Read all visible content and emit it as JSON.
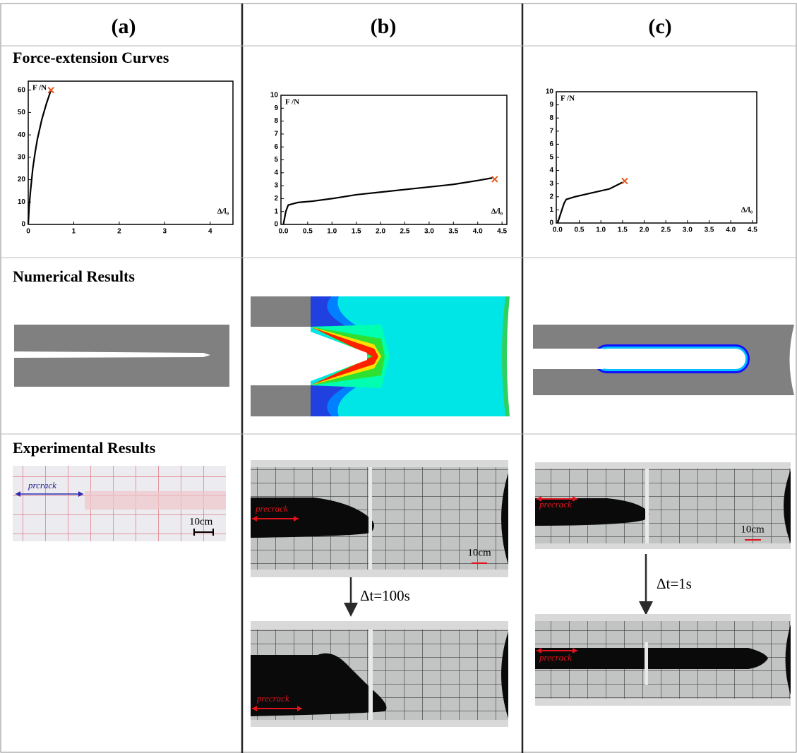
{
  "headers": [
    "(a)",
    "(b)",
    "(c)"
  ],
  "row_labels": [
    "Force-extension Curves",
    "Numerical Results",
    "Experimental Results"
  ],
  "chart_data": [
    {
      "type": "line",
      "y_label": "F /N",
      "x_label": "Δ/l₀",
      "color": "#000000",
      "x": [
        0,
        0.02,
        0.05,
        0.1,
        0.15,
        0.2,
        0.3,
        0.4,
        0.5
      ],
      "values": [
        0,
        8,
        15,
        25,
        32,
        38,
        47,
        54,
        60
      ],
      "failure_point": {
        "x": 0.5,
        "y": 60,
        "color": "#e0581f"
      },
      "xlim": [
        0,
        4.5
      ],
      "xticks": [
        0,
        1,
        2,
        3,
        4
      ],
      "ylim": [
        0,
        64
      ],
      "yticks": [
        0,
        10,
        20,
        30,
        40,
        50,
        60
      ]
    },
    {
      "type": "line",
      "y_label": "F /N",
      "x_label": "Δ/l₀",
      "color": "#000000",
      "x": [
        0,
        0.05,
        0.1,
        0.2,
        0.3,
        0.6,
        1.0,
        1.5,
        2.0,
        2.5,
        3.0,
        3.5,
        4.0,
        4.3
      ],
      "values": [
        0,
        1.0,
        1.5,
        1.6,
        1.7,
        1.8,
        2.0,
        2.3,
        2.5,
        2.7,
        2.9,
        3.1,
        3.4,
        3.6
      ],
      "failure_point": {
        "x": 4.35,
        "y": 3.5,
        "color": "#e0581f"
      },
      "xlim": [
        -0.05,
        4.6
      ],
      "xticks": [
        {
          "value": 0,
          "label": "0.0"
        },
        0.5,
        {
          "value": 1,
          "label": "1.0"
        },
        1.5,
        {
          "value": 2,
          "label": "2.0"
        },
        2.5,
        {
          "value": 3,
          "label": "3.0"
        },
        3.5,
        {
          "value": 4,
          "label": "4.0"
        },
        4.5
      ],
      "ylim": [
        0,
        10
      ],
      "yticks": [
        0,
        1,
        2,
        3,
        4,
        5,
        6,
        7,
        8,
        9,
        10
      ]
    },
    {
      "type": "line",
      "y_label": "F /N",
      "x_label": "Δ/l₀",
      "color": "#000000",
      "x": [
        0,
        0.1,
        0.15,
        0.2,
        0.4,
        0.8,
        1.2,
        1.5
      ],
      "values": [
        0,
        1.0,
        1.5,
        1.8,
        2.0,
        2.3,
        2.6,
        3.1
      ],
      "failure_point": {
        "x": 1.55,
        "y": 3.2,
        "color": "#e0581f"
      },
      "xlim": [
        -0.03,
        4.6
      ],
      "xticks": [
        {
          "value": 0,
          "label": "0.0"
        },
        0.5,
        {
          "value": 1,
          "label": "1.0"
        },
        1.5,
        {
          "value": 2,
          "label": "2.0"
        },
        2.5,
        {
          "value": 3,
          "label": "3.0"
        },
        3.5,
        {
          "value": 4,
          "label": "4.0"
        },
        4.5
      ],
      "ylim": [
        0,
        10
      ],
      "yticks": [
        0,
        1,
        2,
        3,
        4,
        5,
        6,
        7,
        8,
        9,
        10
      ]
    }
  ],
  "experiments": [
    {
      "photos": [
        {
          "label": "prcrack",
          "scale": "10cm"
        }
      ]
    },
    {
      "photos": [
        {
          "label": "precrack",
          "scale": "10cm"
        },
        {
          "label": "precrack"
        }
      ],
      "interval": "Δt=100s"
    },
    {
      "photos": [
        {
          "label": "precrack",
          "scale": "10cm"
        },
        {
          "label": "precrack"
        }
      ],
      "interval": "Δt=1s"
    }
  ]
}
